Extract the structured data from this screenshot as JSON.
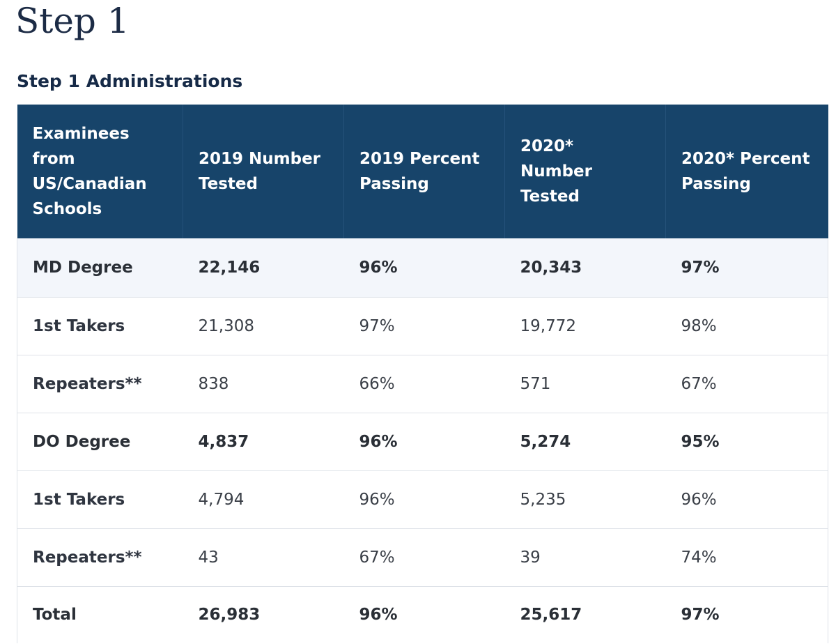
{
  "page": {
    "title": "Step 1",
    "section_title": "Step 1 Administrations"
  },
  "table": {
    "headers": [
      "Examinees from US/Canadian Schools",
      "2019 Number Tested",
      "2019 Percent Passing",
      "2020* Number Tested",
      "2020* Percent Passing"
    ],
    "rows": [
      [
        "MD Degree",
        "22,146",
        "96%",
        "20,343",
        "97%"
      ],
      [
        "1st Takers",
        "21,308",
        "97%",
        "19,772",
        "98%"
      ],
      [
        "Repeaters**",
        "838",
        "66%",
        "571",
        "67%"
      ],
      [
        "DO Degree",
        "4,837",
        "96%",
        "5,274",
        "95%"
      ],
      [
        "1st Takers",
        "4,794",
        "96%",
        "5,235",
        "96%"
      ],
      [
        "Repeaters**",
        "43",
        "67%",
        "39",
        "74%"
      ],
      [
        "Total",
        "26,983",
        "96%",
        "25,617",
        "97%"
      ]
    ]
  },
  "colors": {
    "header_bg": "#17446a",
    "header_text": "#ffffff",
    "title_text": "#1c2b45",
    "highlight_row_bg": "#f3f6fb",
    "row_border": "#dee2e8"
  }
}
